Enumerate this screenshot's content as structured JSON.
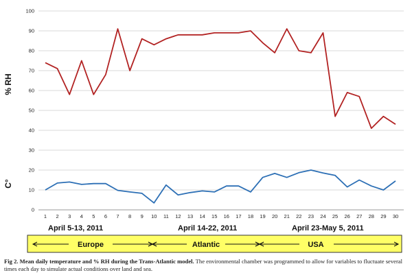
{
  "chart_data": {
    "type": "line",
    "x": [
      1,
      2,
      3,
      4,
      5,
      6,
      7,
      8,
      9,
      10,
      11,
      12,
      13,
      14,
      15,
      16,
      17,
      18,
      19,
      20,
      21,
      22,
      23,
      24,
      25,
      26,
      27,
      28,
      29,
      30
    ],
    "ylim": [
      0,
      100
    ],
    "yticks": [
      0,
      10,
      20,
      30,
      40,
      50,
      60,
      70,
      80,
      90,
      100
    ],
    "y_axis_labels": [
      "% RH",
      "C°"
    ],
    "grid": true,
    "series": [
      {
        "key": "rh",
        "color": "#b22222",
        "values": [
          74,
          71,
          58,
          75,
          58,
          68,
          91,
          70,
          86,
          83,
          86,
          88,
          88,
          88,
          89,
          89,
          89,
          90,
          84,
          79,
          91,
          80,
          79,
          89,
          47,
          59,
          57,
          41,
          47,
          43
        ]
      },
      {
        "key": "temp",
        "color": "#2c6fb5",
        "values": [
          10,
          13.5,
          14,
          12.8,
          13.2,
          13.2,
          9.8,
          9,
          8.3,
          3.5,
          12.5,
          7.5,
          8.7,
          9.5,
          9,
          12,
          12,
          9,
          16.3,
          18.3,
          16.3,
          18.7,
          20,
          18.5,
          17.3,
          11.5,
          15,
          12,
          10,
          14.5
        ]
      }
    ],
    "period_labels": [
      "April 5-13, 2011",
      "April 14-22, 2011",
      "April 23-May 5, 2011"
    ],
    "region_labels": [
      "Europe",
      "Atlantic",
      "USA"
    ]
  },
  "caption": {
    "bold": "Fig 2.  Mean daily temperature and % RH during the Trans-Atlantic model.",
    "text": " The environmental chamber was programmed to allow for variables to fluctuate several times each day to simulate actual conditions over land and sea."
  },
  "colors": {
    "region_bar_fill": "#ffff66",
    "region_bar_border": "#333333",
    "gridline": "#d9d9d9",
    "axis": "#999999"
  }
}
